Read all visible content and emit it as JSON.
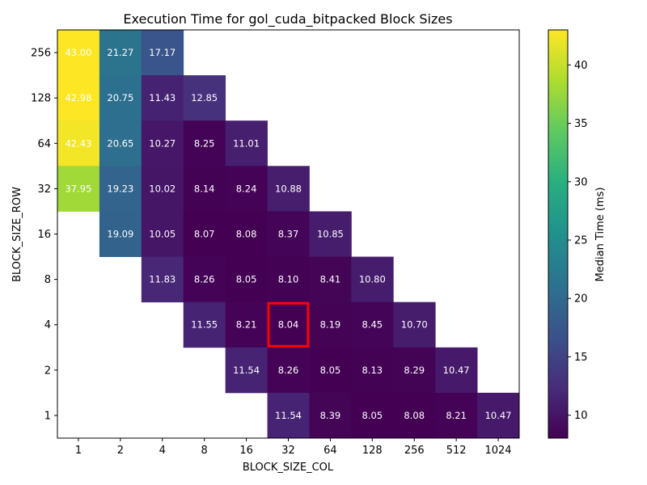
{
  "chart_data": {
    "type": "heatmap",
    "title": "Execution Time for gol_cuda_bitpacked Block Sizes",
    "xlabel": "BLOCK_SIZE_COL",
    "ylabel": "BLOCK_SIZE_ROW",
    "x_categories": [
      "1",
      "2",
      "4",
      "8",
      "16",
      "32",
      "64",
      "128",
      "256",
      "512",
      "1024"
    ],
    "y_categories": [
      "256",
      "128",
      "64",
      "32",
      "16",
      "8",
      "4",
      "2",
      "1"
    ],
    "values": [
      [
        43.0,
        21.27,
        17.17,
        null,
        null,
        null,
        null,
        null,
        null,
        null,
        null
      ],
      [
        42.98,
        20.75,
        11.43,
        12.85,
        null,
        null,
        null,
        null,
        null,
        null,
        null
      ],
      [
        42.43,
        20.65,
        10.27,
        8.25,
        11.01,
        null,
        null,
        null,
        null,
        null,
        null
      ],
      [
        37.95,
        19.23,
        10.02,
        8.14,
        8.24,
        10.88,
        null,
        null,
        null,
        null,
        null
      ],
      [
        null,
        19.09,
        10.05,
        8.07,
        8.08,
        8.37,
        10.85,
        null,
        null,
        null,
        null
      ],
      [
        null,
        null,
        11.83,
        8.26,
        8.05,
        8.1,
        8.41,
        10.8,
        null,
        null,
        null
      ],
      [
        null,
        null,
        null,
        11.55,
        8.21,
        8.04,
        8.19,
        8.45,
        10.7,
        null,
        null
      ],
      [
        null,
        null,
        null,
        null,
        11.54,
        8.26,
        8.05,
        8.13,
        8.29,
        10.47,
        null
      ],
      [
        null,
        null,
        null,
        null,
        null,
        11.54,
        8.39,
        8.05,
        8.08,
        8.21,
        10.47
      ]
    ],
    "highlight": {
      "row": "4",
      "col": "32",
      "color": "#ff0000"
    },
    "colorbar": {
      "label": "Median Time (ms)",
      "colormap": "viridis",
      "vmin": 8.04,
      "vmax": 43.0,
      "ticks": [
        "10",
        "15",
        "20",
        "25",
        "30",
        "35",
        "40"
      ]
    }
  }
}
